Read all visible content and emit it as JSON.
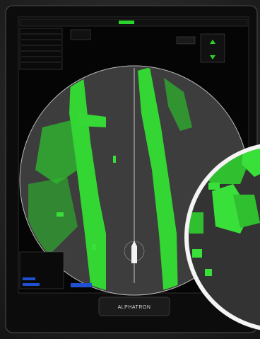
{
  "device": {
    "brand": "ALPHATRON"
  }
}
